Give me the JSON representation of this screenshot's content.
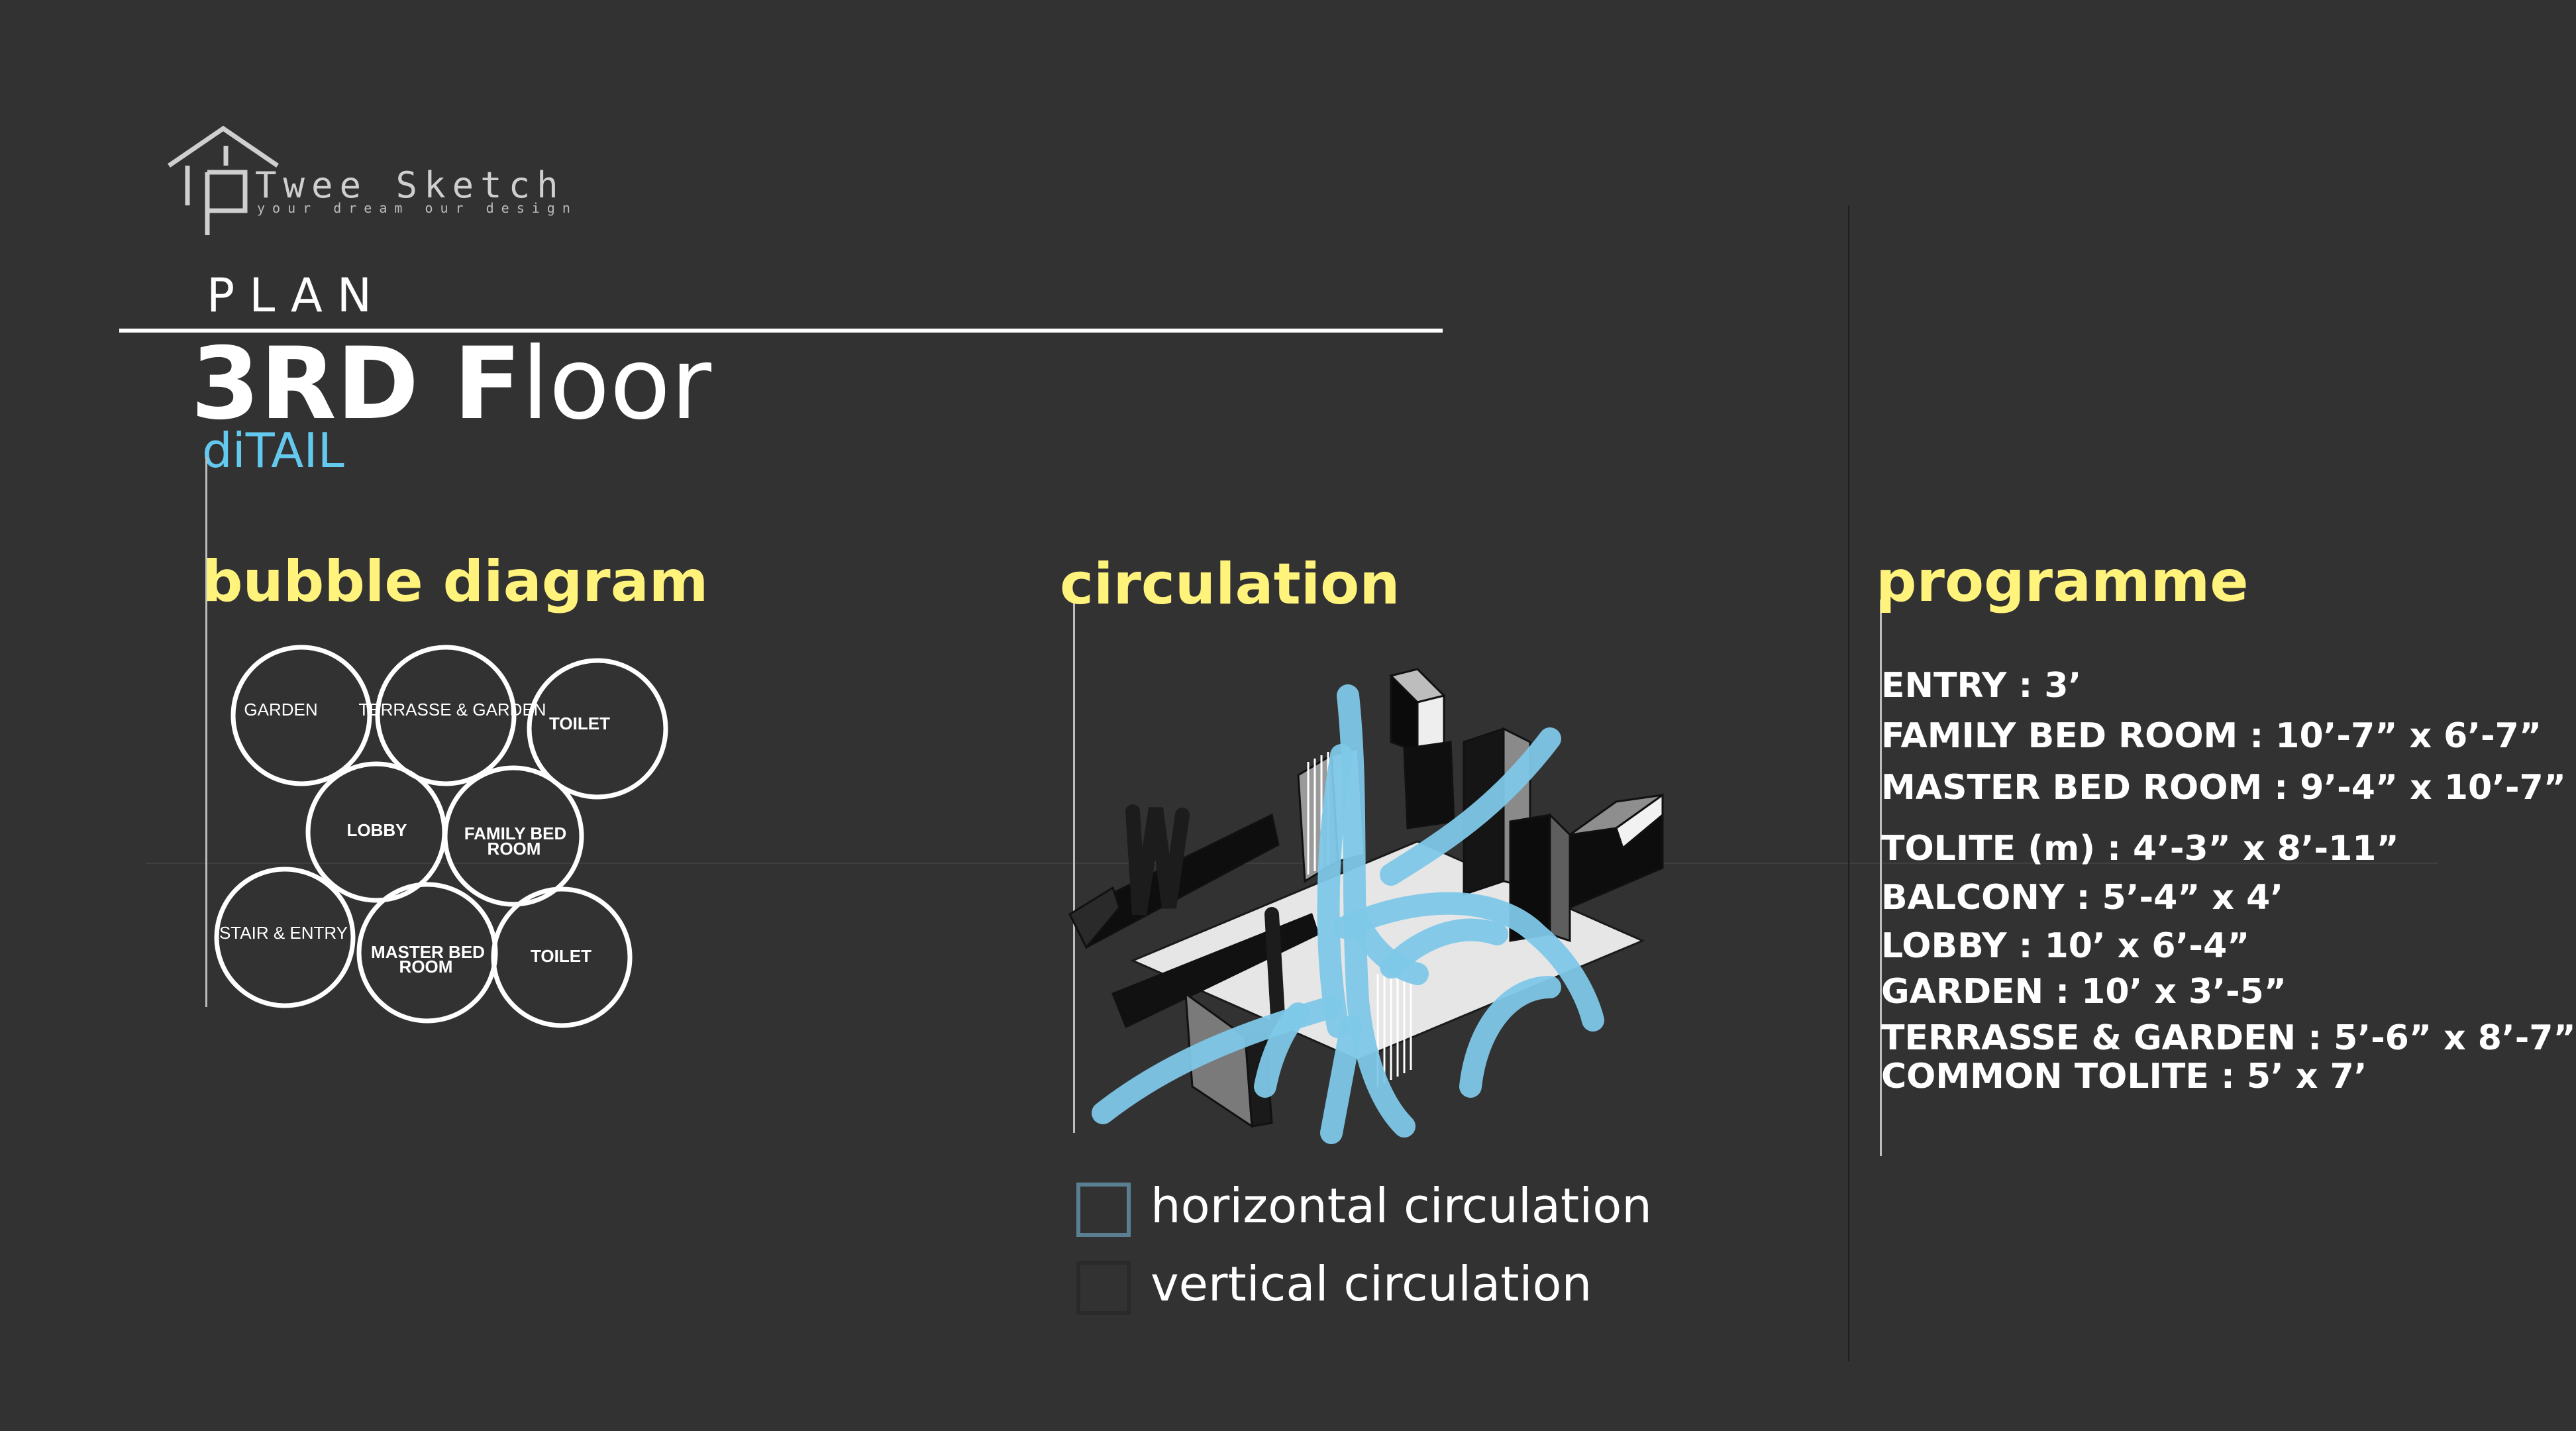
{
  "logo": {
    "name": "Twee Sketch",
    "tagline": "your dream   our design"
  },
  "header": {
    "plan_label": "PLAN",
    "floor_strong": "3RD F",
    "floor_light": "loor",
    "detail": "diTAIL"
  },
  "colors": {
    "background": "#333233",
    "heading_accent": "#fff37c",
    "detail_accent": "#63c9ee",
    "circulation_path": "#7ec8e8"
  },
  "bubble_diagram": {
    "heading": "bubble diagram",
    "bubbles": [
      {
        "label": "GARDEN"
      },
      {
        "label": "TERRASSE & GARDEN"
      },
      {
        "label": "TOILET"
      },
      {
        "label": "LOBBY"
      },
      {
        "label": "FAMILY BED",
        "label2": "ROOM"
      },
      {
        "label": "STAIR & ENTRY"
      },
      {
        "label": "MASTER BED",
        "label2": "ROOM"
      },
      {
        "label": "TOILET"
      }
    ]
  },
  "circulation": {
    "heading": "circulation",
    "legend": [
      {
        "label": "horizontal circulation",
        "icon": "outlined-square"
      },
      {
        "label": "vertical circulation",
        "icon": "dark-square"
      }
    ]
  },
  "programme": {
    "heading": "programme",
    "items": [
      "ENTRY : 3’",
      "FAMILY BED   ROOM : 10’-7” x 6’-7”",
      "MASTER BED   ROOM : 9’-4” x 10’-7”",
      "TOLITE (m) :  4’-3” x 8’-11”",
      "BALCONY : 5’-4” x 4’",
      "LOBBY : 10’ x 6’-4”",
      "GARDEN : 10’ x 3’-5”",
      "TERRASSE & GARDEN : 5’-6” x 8’-7”",
      "COMMON  TOLITE : 5’ x 7’"
    ]
  }
}
